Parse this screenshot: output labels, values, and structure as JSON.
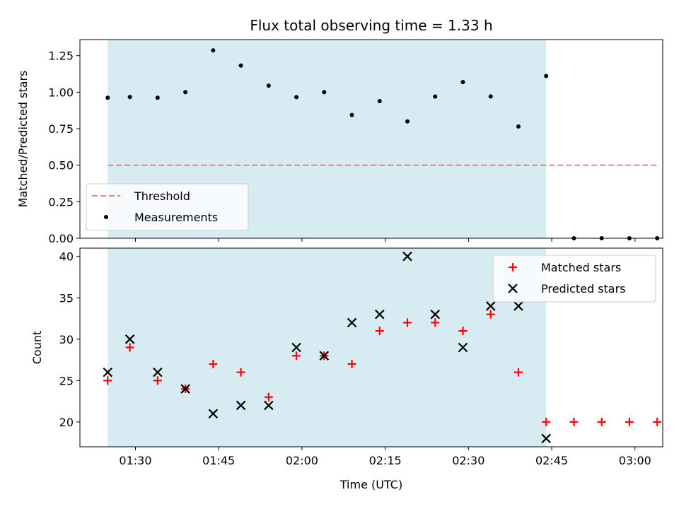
{
  "chart_data": [
    {
      "type": "scatter",
      "title": "Flux total observing time = 1.33 h",
      "xlabel": "",
      "ylabel": "Matched/Predicted stars",
      "ylim": [
        0,
        1.36
      ],
      "yticks": [
        "0.00",
        "0.25",
        "0.50",
        "0.75",
        "1.00",
        "1.25"
      ],
      "observing_window": [
        "01:25",
        "02:44"
      ],
      "legend": {
        "placement": "lower-left",
        "entries": [
          "Threshold",
          "Measurements"
        ]
      },
      "series": [
        {
          "name": "Threshold",
          "kind": "dashed-line",
          "color": "#f08080",
          "x": [
            "01:25",
            "03:04"
          ],
          "values": [
            0.5,
            0.5
          ]
        },
        {
          "name": "Measurements",
          "kind": "dot",
          "color": "#000000",
          "x": [
            "01:25",
            "01:29",
            "01:34",
            "01:39",
            "01:44",
            "01:49",
            "01:54",
            "01:59",
            "02:04",
            "02:09",
            "02:14",
            "02:19",
            "02:24",
            "02:29",
            "02:34",
            "02:39",
            "02:44",
            "02:49",
            "02:54",
            "02:59",
            "03:04"
          ],
          "values": [
            0.962,
            0.967,
            0.962,
            1.0,
            1.286,
            1.182,
            1.045,
            0.966,
            1.0,
            0.844,
            0.939,
            0.8,
            0.97,
            1.069,
            0.971,
            0.765,
            1.111,
            0,
            0,
            0,
            0
          ]
        }
      ]
    },
    {
      "type": "scatter",
      "title": "",
      "xlabel": "Time (UTC)",
      "ylabel": "Count",
      "ylim": [
        17,
        41
      ],
      "yticks": [
        "20",
        "25",
        "30",
        "35",
        "40"
      ],
      "xlim": [
        "01:20",
        "03:05"
      ],
      "xticks": [
        "01:30",
        "01:45",
        "02:00",
        "02:15",
        "02:30",
        "02:45",
        "03:00"
      ],
      "observing_window": [
        "01:25",
        "02:44"
      ],
      "legend": {
        "placement": "top-right",
        "entries": [
          "Matched stars",
          "Predicted stars"
        ]
      },
      "series": [
        {
          "name": "Matched stars",
          "kind": "plus",
          "color": "#ff0000",
          "x": [
            "01:25",
            "01:29",
            "01:34",
            "01:39",
            "01:44",
            "01:49",
            "01:54",
            "01:59",
            "02:04",
            "02:09",
            "02:14",
            "02:19",
            "02:24",
            "02:29",
            "02:34",
            "02:39",
            "02:44",
            "02:49",
            "02:54",
            "02:59",
            "03:04"
          ],
          "values": [
            25,
            29,
            25,
            24,
            27,
            26,
            23,
            28,
            28,
            27,
            31,
            32,
            32,
            31,
            33,
            26,
            20,
            20,
            20,
            20,
            20
          ]
        },
        {
          "name": "Predicted stars",
          "kind": "x",
          "color": "#000000",
          "x": [
            "01:25",
            "01:29",
            "01:34",
            "01:39",
            "01:44",
            "01:49",
            "01:54",
            "01:59",
            "02:04",
            "02:09",
            "02:14",
            "02:19",
            "02:24",
            "02:29",
            "02:34",
            "02:39",
            "02:44"
          ],
          "values": [
            26,
            30,
            26,
            24,
            21,
            22,
            22,
            29,
            28,
            32,
            33,
            40,
            33,
            29,
            34,
            34,
            18
          ]
        }
      ]
    }
  ],
  "colors": {
    "span": "#add8e6",
    "threshold": "#f08080",
    "matched": "#ff0000",
    "predicted": "#000000"
  }
}
